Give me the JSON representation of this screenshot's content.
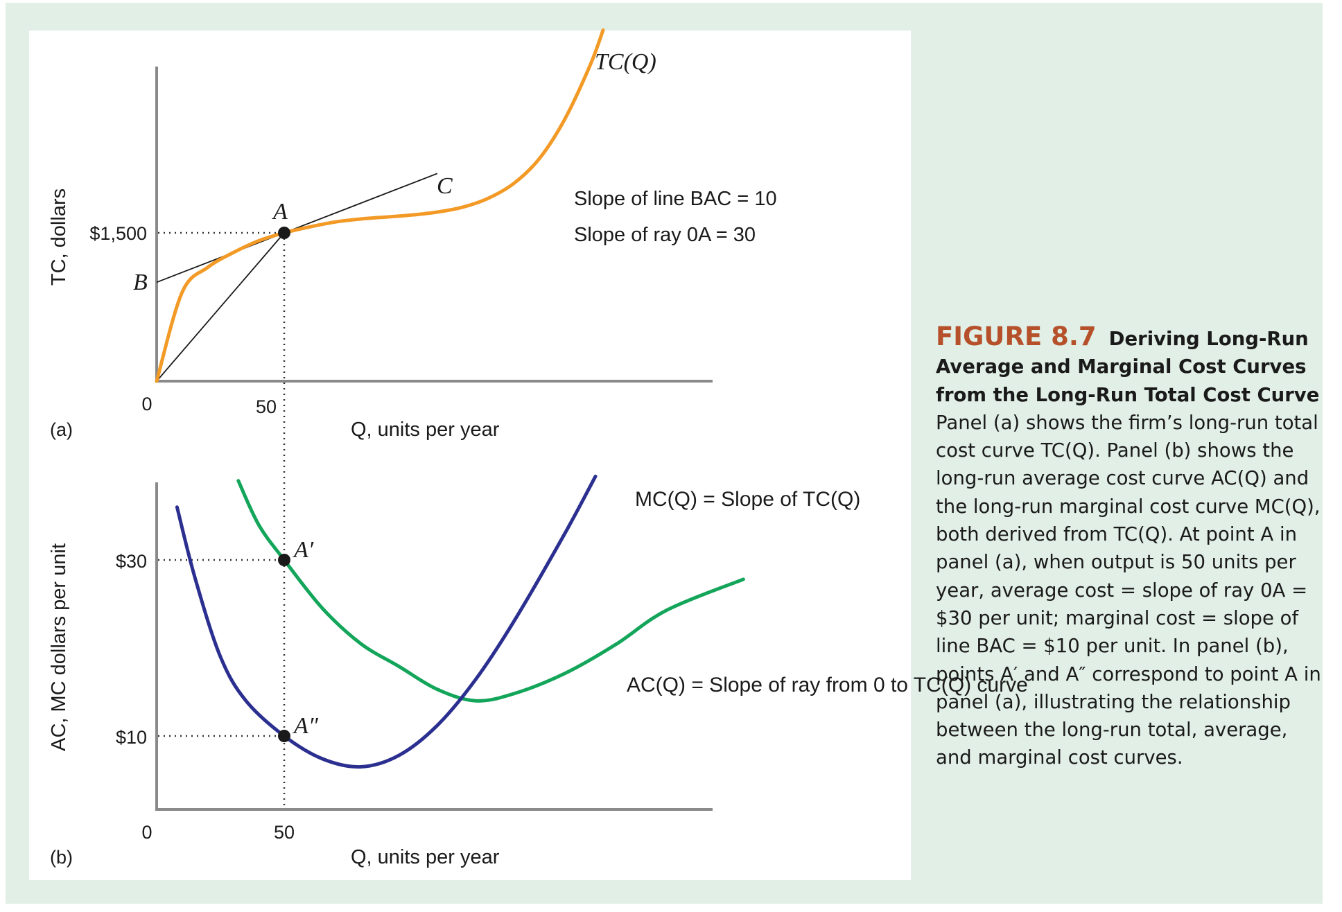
{
  "caption": {
    "label": "FIGURE 8.7",
    "title": "Deriving Long-Run Average and Marginal Cost Curves from the Long-Run Total Cost Curve",
    "body": "Panel (a) shows the firm’s long-run total cost curve TC(Q). Panel (b) shows the long-run average cost curve AC(Q) and the long-run marginal cost curve MC(Q), both derived from TC(Q). At point A in panel (a), when output is 50 units per year, average cost = slope of ray 0A = $30 per unit; marginal cost = slope of line BAC = $10 per unit. In panel (b), points A′ and A″ correspond to point A in panel (a), illustrating the relationship between the long-run total, average, and marginal cost curves."
  },
  "chart_data": [
    {
      "panel": "(a)",
      "type": "line",
      "xlabel": "Q, units per year",
      "ylabel": "TC, dollars",
      "x_ticks": [
        "0",
        "50"
      ],
      "y_ticks": [
        "$1,500"
      ],
      "series": [
        {
          "name": "TC(Q)",
          "color": "#f39a26",
          "points": [
            [
              0,
              0
            ],
            [
              10,
              900
            ],
            [
              20,
              1150
            ],
            [
              30,
              1300
            ],
            [
              40,
              1420
            ],
            [
              50,
              1500
            ],
            [
              60,
              1560
            ],
            [
              70,
              1610
            ],
            [
              80,
              1640
            ],
            [
              90,
              1660
            ],
            [
              100,
              1680
            ],
            [
              110,
              1710
            ],
            [
              120,
              1760
            ],
            [
              130,
              1850
            ],
            [
              140,
              2000
            ],
            [
              150,
              2250
            ],
            [
              160,
              2650
            ],
            [
              170,
              3200
            ],
            [
              175,
              3550
            ]
          ]
        },
        {
          "name": "Line BAC",
          "color": "#1a1a1a",
          "points": [
            [
              0,
              1000
            ],
            [
              110,
              2100
            ]
          ]
        },
        {
          "name": "Ray 0A",
          "color": "#1a1a1a",
          "points": [
            [
              0,
              0
            ],
            [
              50,
              1500
            ]
          ]
        }
      ],
      "points": [
        {
          "label": "A",
          "x": 50,
          "y": 1500
        }
      ],
      "labels": {
        "B": "B",
        "C": "C",
        "tc_label": "TC(Q)"
      },
      "annotations": [
        "Slope of line BAC = 10",
        "Slope of ray 0A = 30"
      ]
    },
    {
      "panel": "(b)",
      "type": "line",
      "xlabel": "Q, units per year",
      "ylabel": "AC, MC dollars per unit",
      "x_ticks": [
        "0",
        "50"
      ],
      "y_ticks": [
        "$30",
        "$10"
      ],
      "series": [
        {
          "name": "MC(Q)",
          "color": "#2b2f8f",
          "points": [
            [
              8,
              36
            ],
            [
              15,
              28
            ],
            [
              25,
              19
            ],
            [
              35,
              14
            ],
            [
              50,
              10
            ],
            [
              65,
              7.4
            ],
            [
              80,
              6.5
            ],
            [
              95,
              7.8
            ],
            [
              110,
              11.2
            ],
            [
              125,
              16.4
            ],
            [
              140,
              23
            ],
            [
              160,
              33
            ],
            [
              172,
              39.5
            ]
          ]
        },
        {
          "name": "AC(Q)",
          "color": "#13a55a",
          "points": [
            [
              32,
              39
            ],
            [
              40,
              34
            ],
            [
              50,
              30
            ],
            [
              65,
              24.5
            ],
            [
              80,
              20.5
            ],
            [
              95,
              17.9
            ],
            [
              110,
              15.3
            ],
            [
              125,
              14
            ],
            [
              140,
              14.8
            ],
            [
              160,
              17.1
            ],
            [
              180,
              20.4
            ],
            [
              200,
              24.3
            ],
            [
              230,
              27.8
            ]
          ]
        }
      ],
      "points": [
        {
          "label": "A′",
          "x": 50,
          "y": 30
        },
        {
          "label": "A″",
          "x": 50,
          "y": 10
        }
      ],
      "annotations": [
        "MC(Q) = Slope of TC(Q)",
        "AC(Q) = Slope of ray from 0 to TC(Q) curve"
      ]
    }
  ]
}
